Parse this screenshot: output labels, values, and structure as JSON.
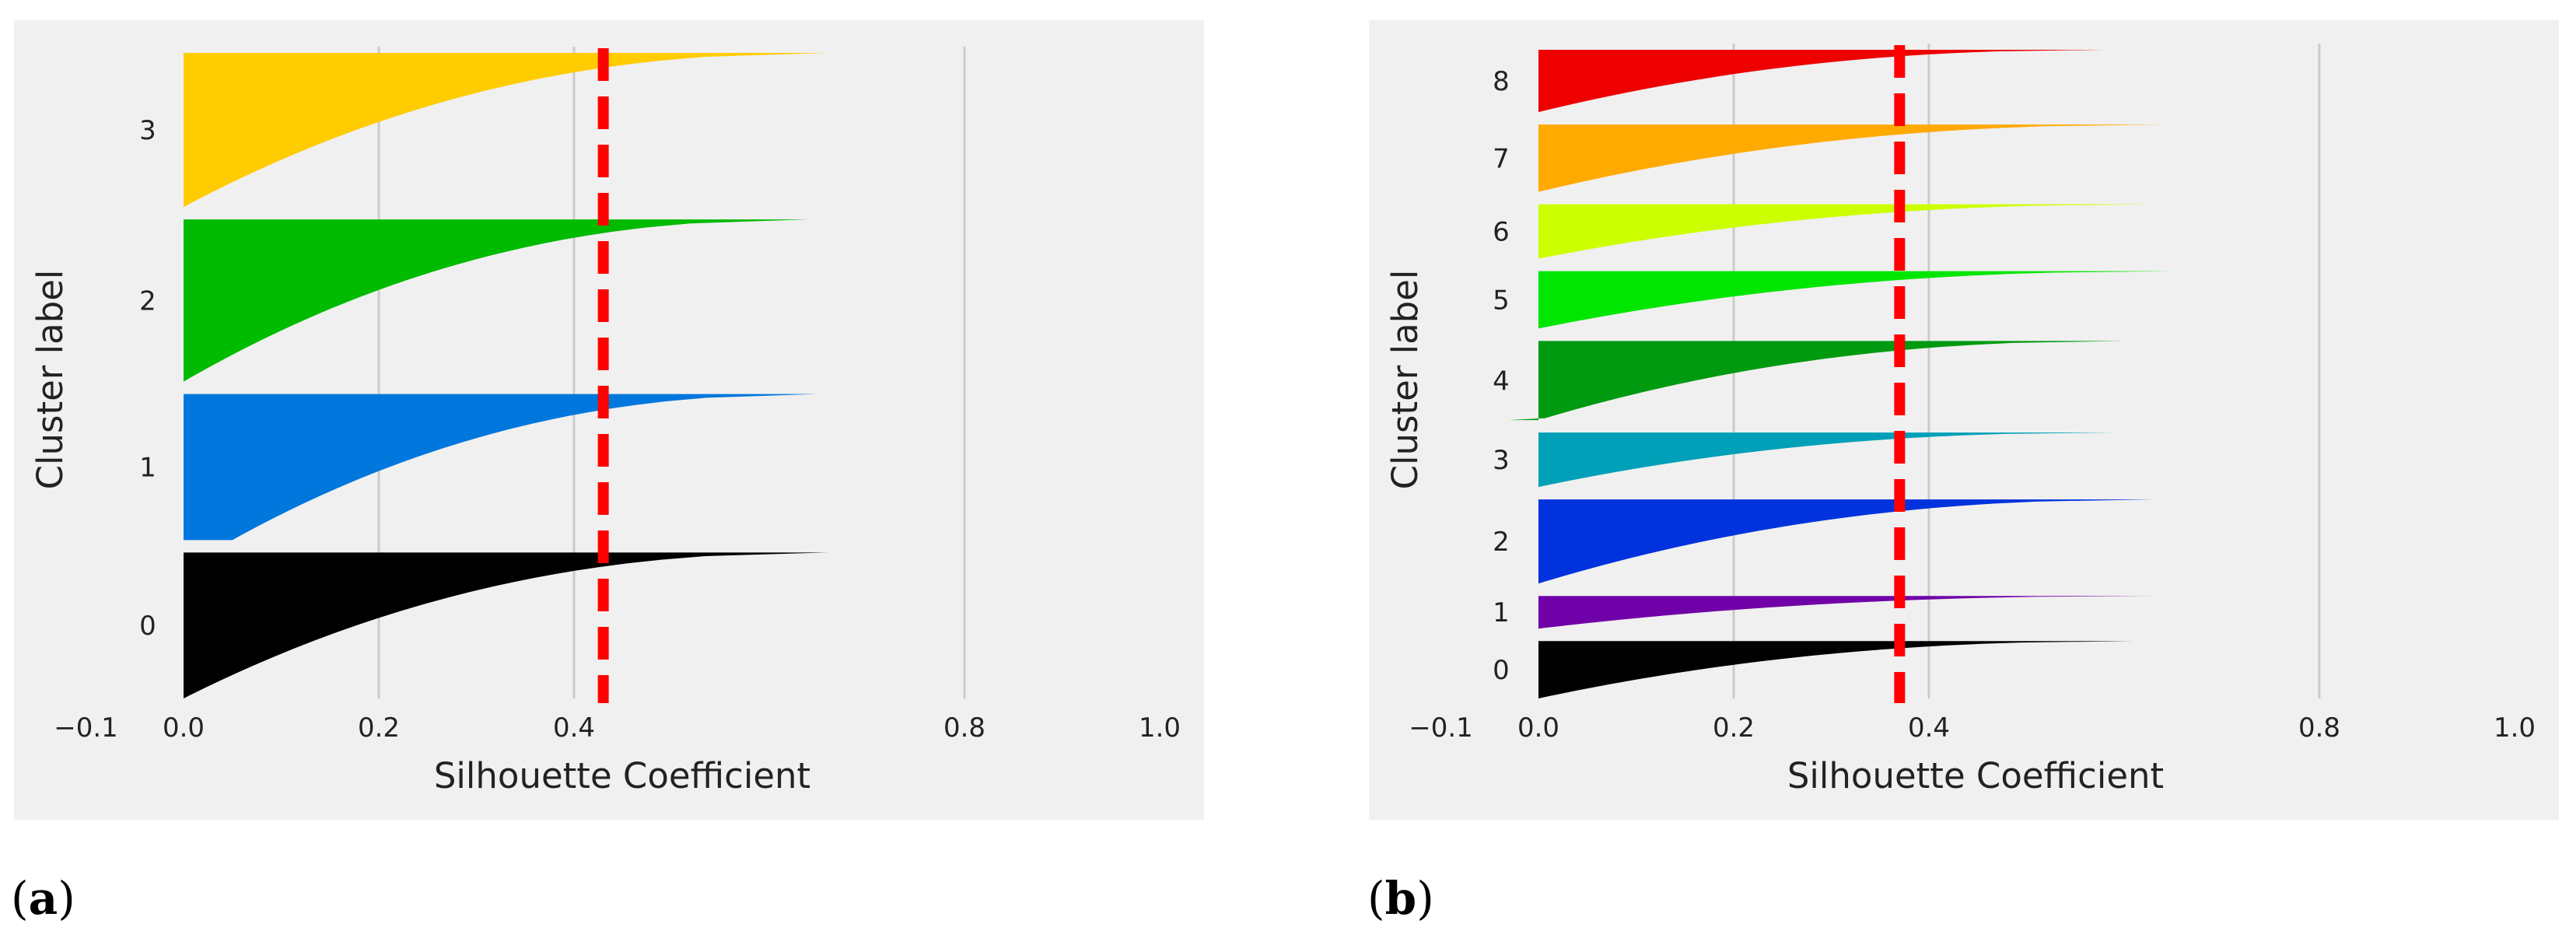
{
  "chart_data": [
    {
      "type": "silhouette",
      "panel_label": "a",
      "xlabel": "Silhouette Coefficient",
      "ylabel": "Cluster label",
      "xlim": [
        -0.1,
        1.0
      ],
      "xticks": [
        {
          "value": -0.1,
          "label": "−0.1"
        },
        {
          "value": 0.0,
          "label": "0.0"
        },
        {
          "value": 0.2,
          "label": "0.2"
        },
        {
          "value": 0.4,
          "label": "0.4"
        },
        {
          "value": 0.8,
          "label": "0.8"
        },
        {
          "value": 1.0,
          "label": "1.0"
        }
      ],
      "gridlines": [
        0.2,
        0.4,
        0.8
      ],
      "average_silhouette": 0.43,
      "clusters": [
        {
          "label": "0",
          "color": "#000000",
          "min": 0.0,
          "max": 0.66,
          "size": 0.9
        },
        {
          "label": "1",
          "color": "#0077dd",
          "min": 0.05,
          "max": 0.65,
          "size": 0.9
        },
        {
          "label": "2",
          "color": "#00bb00",
          "min": 0.0,
          "max": 0.64,
          "size": 1.0
        },
        {
          "label": "3",
          "color": "#ffcc00",
          "min": 0.0,
          "max": 0.66,
          "size": 0.95
        }
      ]
    },
    {
      "type": "silhouette",
      "panel_label": "b",
      "xlabel": "Silhouette Coefficient",
      "ylabel": "Cluster label",
      "xlim": [
        -0.1,
        1.0
      ],
      "xticks": [
        {
          "value": -0.1,
          "label": "−0.1"
        },
        {
          "value": 0.0,
          "label": "0.0"
        },
        {
          "value": 0.2,
          "label": "0.2"
        },
        {
          "value": 0.4,
          "label": "0.4"
        },
        {
          "value": 0.8,
          "label": "0.8"
        },
        {
          "value": 1.0,
          "label": "1.0"
        }
      ],
      "gridlines": [
        0.2,
        0.4,
        0.8
      ],
      "average_silhouette": 0.37,
      "clusters": [
        {
          "label": "0",
          "color": "#000000",
          "min": 0.0,
          "max": 0.61,
          "size": 0.58
        },
        {
          "label": "1",
          "color": "#7000a8",
          "min": 0.0,
          "max": 0.63,
          "size": 0.33
        },
        {
          "label": "2",
          "color": "#0033dd",
          "min": 0.0,
          "max": 0.63,
          "size": 0.85
        },
        {
          "label": "3",
          "color": "#00a0b8",
          "min": 0.0,
          "max": 0.59,
          "size": 0.55
        },
        {
          "label": "4",
          "color": "#009a10",
          "min": -0.03,
          "max": 0.6,
          "size": 0.8
        },
        {
          "label": "5",
          "color": "#00e600",
          "min": 0.0,
          "max": 0.65,
          "size": 0.58
        },
        {
          "label": "6",
          "color": "#ccff00",
          "min": 0.0,
          "max": 0.63,
          "size": 0.55
        },
        {
          "label": "7",
          "color": "#ffaa00",
          "min": 0.0,
          "max": 0.64,
          "size": 0.68
        },
        {
          "label": "8",
          "color": "#ee0000",
          "min": 0.0,
          "max": 0.58,
          "size": 0.63
        }
      ]
    }
  ]
}
